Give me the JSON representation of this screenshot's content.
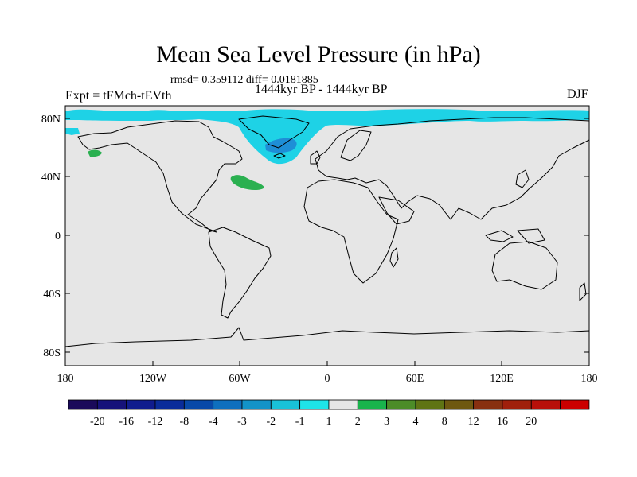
{
  "map": {
    "title": "Mean Sea Level Pressure (in hPa)",
    "stats": "rmsd= 0.359112 diff= 0.0181885",
    "period": "1444kyr BP - 1444kyr BP",
    "experiment": "Expt = tFMch-tEVth",
    "season": "DJF",
    "lat_labels": [
      "80N",
      "40N",
      "0",
      "40S",
      "80S"
    ],
    "lon_labels": [
      "180",
      "120W",
      "60W",
      "0",
      "60E",
      "120E",
      "180"
    ]
  },
  "colorbar": {
    "labels": [
      "-20",
      "-16",
      "-12",
      "-8",
      "-4",
      "-3",
      "-2",
      "-1",
      "1",
      "2",
      "3",
      "4",
      "8",
      "12",
      "16",
      "20"
    ],
    "colors": [
      "#1a0a5a",
      "#16127a",
      "#101c8e",
      "#0a2c9a",
      "#0849a8",
      "#0e6fbe",
      "#1393c8",
      "#19c2d8",
      "#1ee4e8",
      "#e6e6e6",
      "#19b44c",
      "#4c8c28",
      "#5f7414",
      "#6e5810",
      "#883010",
      "#a0200c",
      "#b8100a",
      "#cc0000"
    ]
  },
  "style": {
    "ocean": "#e6e6e6",
    "cyan": "#1ed2e6",
    "blue": "#1e8ed6",
    "green": "#2ab050"
  }
}
